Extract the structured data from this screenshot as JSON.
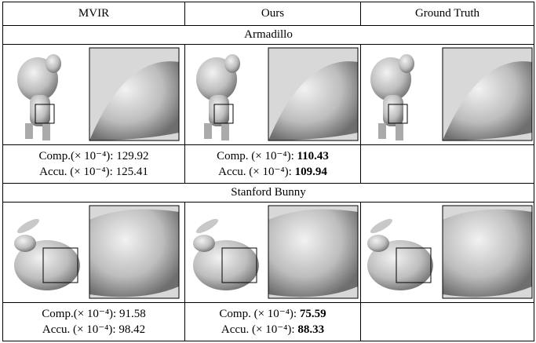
{
  "header": {
    "columns": [
      "MVIR",
      "Ours",
      "Ground Truth"
    ]
  },
  "sections": [
    {
      "title": "Armadillo",
      "results": [
        {
          "comp_label": "Comp.(× 10⁻⁴):",
          "comp": 129.92,
          "accu_label": "Accu. (× 10⁻⁴):",
          "accu": 125.41,
          "bold": false
        },
        {
          "comp_label": "Comp. (× 10⁻⁴):",
          "comp": 110.43,
          "accu_label": "Accu. (× 10⁻⁴):",
          "accu": 109.94,
          "bold": true
        }
      ]
    },
    {
      "title": "Stanford Bunny",
      "results": [
        {
          "comp_label": "Comp.(× 10⁻⁴):",
          "comp": 91.58,
          "accu_label": "Accu. (× 10⁻⁴):",
          "accu": 98.42,
          "bold": false
        },
        {
          "comp_label": "Comp. (× 10⁻⁴):",
          "comp": 75.59,
          "accu_label": "Accu. (× 10⁻⁴):",
          "accu": 88.33,
          "bold": true
        }
      ]
    }
  ]
}
